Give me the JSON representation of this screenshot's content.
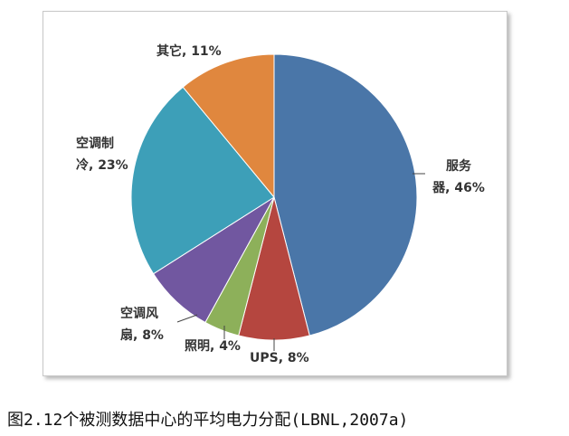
{
  "chart_data": {
    "type": "pie",
    "labels": [
      [
        "服务",
        "器, 46%"
      ],
      [
        "UPS, 8%"
      ],
      [
        "照明, 4%"
      ],
      [
        "空调风",
        "扇, 8%"
      ],
      [
        "空调制",
        "冷, 23%"
      ],
      [
        "其它, 11%"
      ]
    ],
    "values": [
      46,
      8,
      4,
      8,
      23,
      11
    ],
    "colors": [
      "#4a76a8",
      "#b5463f",
      "#8db05a",
      "#7157a0",
      "#3d9fb8",
      "#e0873e"
    ],
    "caption": "图2.12个被测数据中心的平均电力分配(LBNL,2007a)"
  }
}
